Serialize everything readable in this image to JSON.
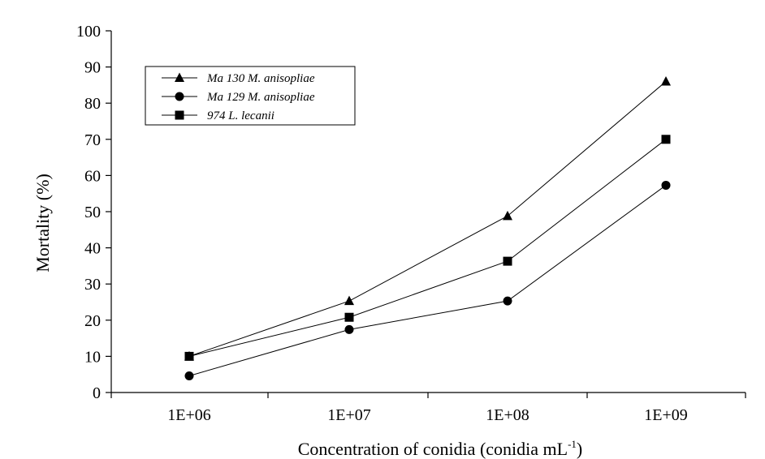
{
  "chart_data": {
    "type": "line",
    "title": "",
    "xlabel": "Concentration of conidia (conidia mL",
    "xlabel_sup": "-1",
    "xlabel_suffix": ")",
    "ylabel": "Mortality (%)",
    "categories": [
      "1E+06",
      "1E+07",
      "1E+08",
      "1E+09"
    ],
    "ylim": [
      0,
      100
    ],
    "yticks": [
      0,
      10,
      20,
      30,
      40,
      50,
      60,
      70,
      80,
      90,
      100
    ],
    "grid": false,
    "legend_position": "top-left",
    "series": [
      {
        "name": "Ma 130 M. anisopliae",
        "marker": "triangle",
        "values": [
          10,
          25.3,
          48.8,
          86
        ]
      },
      {
        "name": "Ma 129 M. anisopliae",
        "marker": "circle",
        "values": [
          4.6,
          17.4,
          25.3,
          57.3
        ]
      },
      {
        "name": "974 L. lecanii",
        "marker": "square",
        "values": [
          10,
          20.8,
          36.3,
          70
        ]
      }
    ],
    "colors": {
      "line": "#000000",
      "marker": "#000000"
    }
  }
}
